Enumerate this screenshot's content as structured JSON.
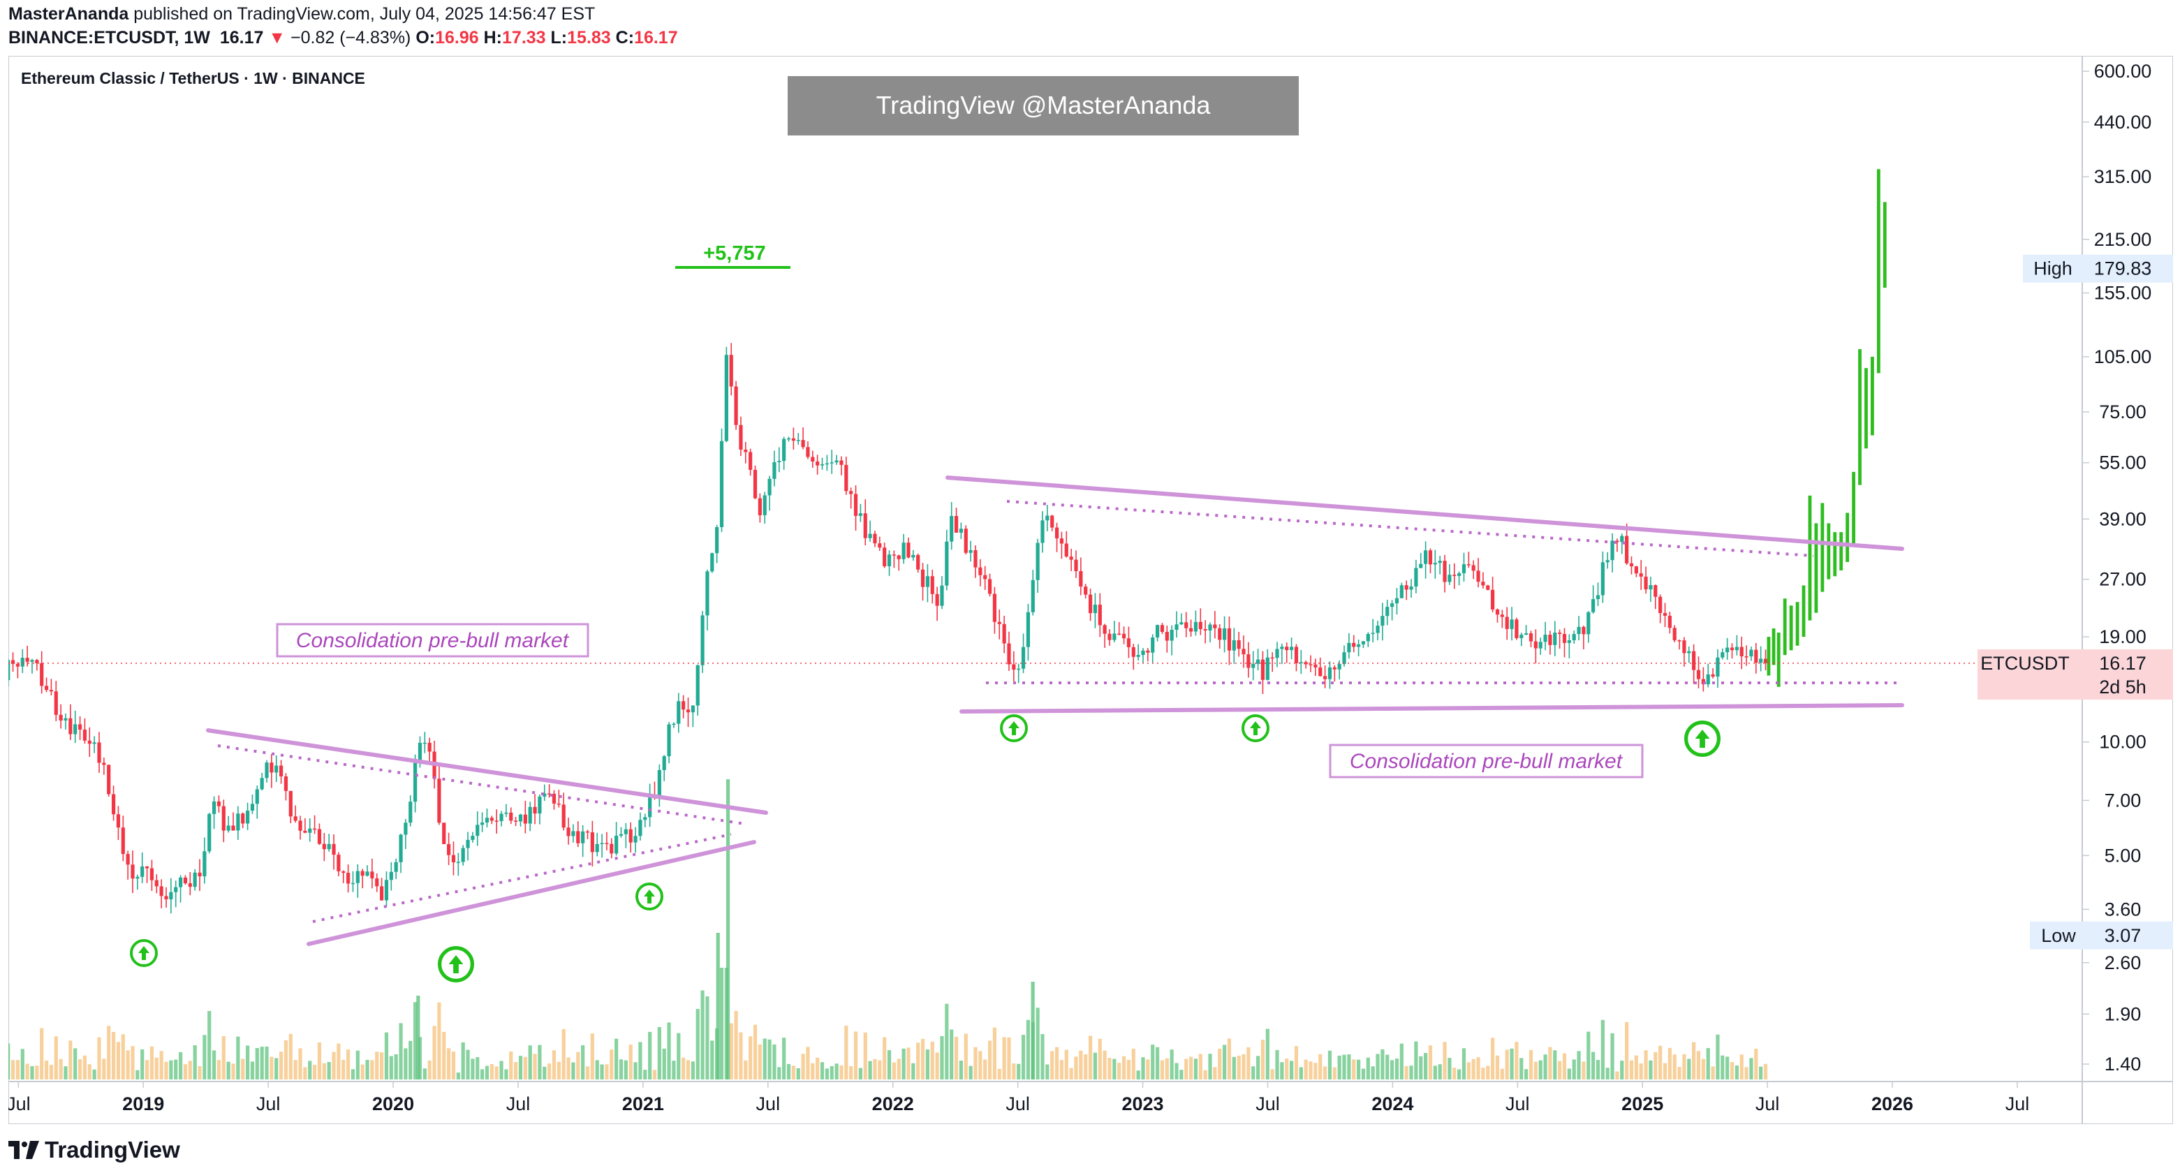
{
  "header": {
    "author": "MasterAnanda",
    "published": "published on TradingView.com, July 04, 2025 14:56:47 EST",
    "symbol_line": "BINANCE:ETCUSDT, 1W",
    "last": "16.17",
    "change_arrow": "▼",
    "change": "−0.82 (−4.83%)",
    "ohlc": [
      {
        "k": "O:",
        "v": "16.96"
      },
      {
        "k": "H:",
        "v": "17.33"
      },
      {
        "k": "L:",
        "v": "15.83"
      },
      {
        "k": "C:",
        "v": "16.17"
      }
    ]
  },
  "legend_title": "Ethereum Classic / TetherUS · 1W · BINANCE",
  "watermark": "TradingView @MasterAnanda",
  "footer_brand": "TradingView",
  "colors": {
    "up": "#22ab94",
    "down": "#f23645",
    "trend": "#ce93d8",
    "dotted": "#ba68c8",
    "arrow": "#22c11a",
    "projection": "#2ebd1f",
    "vol_up": "#5fc37f",
    "vol_down": "#f5c07a",
    "high_bg": "#e3effd",
    "low_bg": "#e3effd",
    "price_bg": "#fbd5d7"
  },
  "chart_data": {
    "type": "candlestick",
    "title": "Ethereum Classic / TetherUS · 1W · BINANCE",
    "y_scale": "log",
    "ylim": [
      1.3,
      620
    ],
    "y_ticks": [
      "600.00",
      "440.00",
      "315.00",
      "215.00",
      "155.00",
      "105.00",
      "75.00",
      "55.00",
      "39.00",
      "27.00",
      "19.00",
      "10.00",
      "7.00",
      "5.00",
      "3.60",
      "2.60",
      "1.90",
      "1.40"
    ],
    "x_range": [
      "2018-06",
      "2026-12"
    ],
    "x_ticks": [
      {
        "label": "Jul",
        "t": 2018.5,
        "bold": false
      },
      {
        "label": "2019",
        "t": 2019.0,
        "bold": true
      },
      {
        "label": "Jul",
        "t": 2019.5,
        "bold": false
      },
      {
        "label": "2020",
        "t": 2020.0,
        "bold": true
      },
      {
        "label": "Jul",
        "t": 2020.5,
        "bold": false
      },
      {
        "label": "2021",
        "t": 2021.0,
        "bold": true
      },
      {
        "label": "Jul",
        "t": 2021.5,
        "bold": false
      },
      {
        "label": "2022",
        "t": 2022.0,
        "bold": true
      },
      {
        "label": "Jul",
        "t": 2022.5,
        "bold": false
      },
      {
        "label": "2023",
        "t": 2023.0,
        "bold": true
      },
      {
        "label": "Jul",
        "t": 2023.5,
        "bold": false
      },
      {
        "label": "2024",
        "t": 2024.0,
        "bold": true
      },
      {
        "label": "Jul",
        "t": 2024.5,
        "bold": false
      },
      {
        "label": "2025",
        "t": 2025.0,
        "bold": true
      },
      {
        "label": "Jul",
        "t": 2025.5,
        "bold": false
      },
      {
        "label": "2026",
        "t": 2026.0,
        "bold": true
      },
      {
        "label": "Jul",
        "t": 2026.5,
        "bold": false
      }
    ],
    "anchors": [
      [
        2018.44,
        15.5
      ],
      [
        2018.55,
        17.5
      ],
      [
        2018.62,
        13.5
      ],
      [
        2018.7,
        11
      ],
      [
        2018.82,
        9.5
      ],
      [
        2018.88,
        6.5
      ],
      [
        2018.95,
        4.3
      ],
      [
        2019.0,
        4.6
      ],
      [
        2019.08,
        3.9
      ],
      [
        2019.15,
        4.2
      ],
      [
        2019.22,
        4.5
      ],
      [
        2019.28,
        6.8
      ],
      [
        2019.35,
        5.6
      ],
      [
        2019.45,
        7.5
      ],
      [
        2019.5,
        9.0
      ],
      [
        2019.55,
        7.8
      ],
      [
        2019.62,
        6.0
      ],
      [
        2019.72,
        5.6
      ],
      [
        2019.8,
        4.3
      ],
      [
        2019.88,
        4.6
      ],
      [
        2019.95,
        3.9
      ],
      [
        2020.0,
        4.6
      ],
      [
        2020.05,
        6.0
      ],
      [
        2020.1,
        10.2
      ],
      [
        2020.15,
        9.5
      ],
      [
        2020.2,
        5.4
      ],
      [
        2020.25,
        4.6
      ],
      [
        2020.32,
        5.5
      ],
      [
        2020.4,
        6.5
      ],
      [
        2020.48,
        6.0
      ],
      [
        2020.55,
        6.6
      ],
      [
        2020.62,
        7.3
      ],
      [
        2020.7,
        6.0
      ],
      [
        2020.8,
        5.3
      ],
      [
        2020.9,
        5.4
      ],
      [
        2020.96,
        5.8
      ],
      [
        2021.0,
        6.2
      ],
      [
        2021.05,
        7.4
      ],
      [
        2021.1,
        11.0
      ],
      [
        2021.15,
        13.0
      ],
      [
        2021.2,
        12.0
      ],
      [
        2021.26,
        28
      ],
      [
        2021.3,
        36
      ],
      [
        2021.33,
        105
      ],
      [
        2021.36,
        78
      ],
      [
        2021.42,
        52
      ],
      [
        2021.47,
        42
      ],
      [
        2021.52,
        52
      ],
      [
        2021.58,
        68
      ],
      [
        2021.65,
        60
      ],
      [
        2021.72,
        55
      ],
      [
        2021.78,
        56
      ],
      [
        2021.85,
        40
      ],
      [
        2021.92,
        34
      ],
      [
        2021.98,
        30
      ],
      [
        2022.05,
        33
      ],
      [
        2022.12,
        27
      ],
      [
        2022.18,
        24
      ],
      [
        2022.24,
        40
      ],
      [
        2022.3,
        32
      ],
      [
        2022.36,
        27
      ],
      [
        2022.42,
        20
      ],
      [
        2022.46,
        17
      ],
      [
        2022.5,
        15
      ],
      [
        2022.56,
        28
      ],
      [
        2022.6,
        40
      ],
      [
        2022.66,
        35
      ],
      [
        2022.72,
        30
      ],
      [
        2022.78,
        23
      ],
      [
        2022.86,
        20
      ],
      [
        2022.92,
        18
      ],
      [
        2022.98,
        16
      ],
      [
        2023.05,
        20
      ],
      [
        2023.12,
        19
      ],
      [
        2023.2,
        21
      ],
      [
        2023.3,
        20
      ],
      [
        2023.4,
        17
      ],
      [
        2023.48,
        15.5
      ],
      [
        2023.55,
        18.5
      ],
      [
        2023.62,
        16.5
      ],
      [
        2023.7,
        15.0
      ],
      [
        2023.78,
        15.5
      ],
      [
        2023.85,
        19
      ],
      [
        2023.92,
        20
      ],
      [
        2024.0,
        24
      ],
      [
        2024.08,
        26
      ],
      [
        2024.12,
        32
      ],
      [
        2024.18,
        29
      ],
      [
        2024.25,
        27
      ],
      [
        2024.3,
        30
      ],
      [
        2024.38,
        24
      ],
      [
        2024.45,
        21
      ],
      [
        2024.52,
        19
      ],
      [
        2024.58,
        18
      ],
      [
        2024.65,
        19
      ],
      [
        2024.72,
        18
      ],
      [
        2024.78,
        21
      ],
      [
        2024.85,
        30
      ],
      [
        2024.9,
        36
      ],
      [
        2024.95,
        30
      ],
      [
        2025.0,
        27
      ],
      [
        2025.05,
        25
      ],
      [
        2025.1,
        20
      ],
      [
        2025.16,
        18
      ],
      [
        2025.22,
        15.5
      ],
      [
        2025.28,
        14.5
      ],
      [
        2025.33,
        18.5
      ],
      [
        2025.38,
        17.5
      ],
      [
        2025.44,
        16.5
      ],
      [
        2025.5,
        16.17
      ]
    ],
    "projection_bars": [
      [
        2025.505,
        15.0,
        19.0
      ],
      [
        2025.525,
        16.0,
        20.0
      ],
      [
        2025.545,
        14.0,
        19.5
      ],
      [
        2025.57,
        17.0,
        24.0
      ],
      [
        2025.595,
        17.5,
        23.0
      ],
      [
        2025.62,
        18.0,
        23.5
      ],
      [
        2025.645,
        19.0,
        26.0
      ],
      [
        2025.67,
        21.0,
        45.0
      ],
      [
        2025.695,
        22.0,
        38.0
      ],
      [
        2025.72,
        25.0,
        43.0
      ],
      [
        2025.745,
        27.0,
        38.0
      ],
      [
        2025.77,
        27.5,
        36.0
      ],
      [
        2025.795,
        28.5,
        36.0
      ],
      [
        2025.82,
        30.0,
        40.5
      ],
      [
        2025.845,
        33.0,
        52.0
      ],
      [
        2025.87,
        48.0,
        110.0
      ],
      [
        2025.895,
        60.0,
        98.0
      ],
      [
        2025.92,
        65.0,
        105.0
      ],
      [
        2025.945,
        95.0,
        330.0
      ],
      [
        2025.97,
        160.0,
        270.0
      ]
    ],
    "annotations": {
      "high_label": "High",
      "high_value": "179.83",
      "low_label": "Low",
      "low_value": "3.07",
      "price_label": "ETCUSDT",
      "price_value": "16.17",
      "countdown": "2d 5h",
      "peak_label": "+5,757",
      "consolidation_label_1": "Consolidation pre-bull market",
      "consolidation_label_2": "Consolidation pre-bull market"
    }
  }
}
